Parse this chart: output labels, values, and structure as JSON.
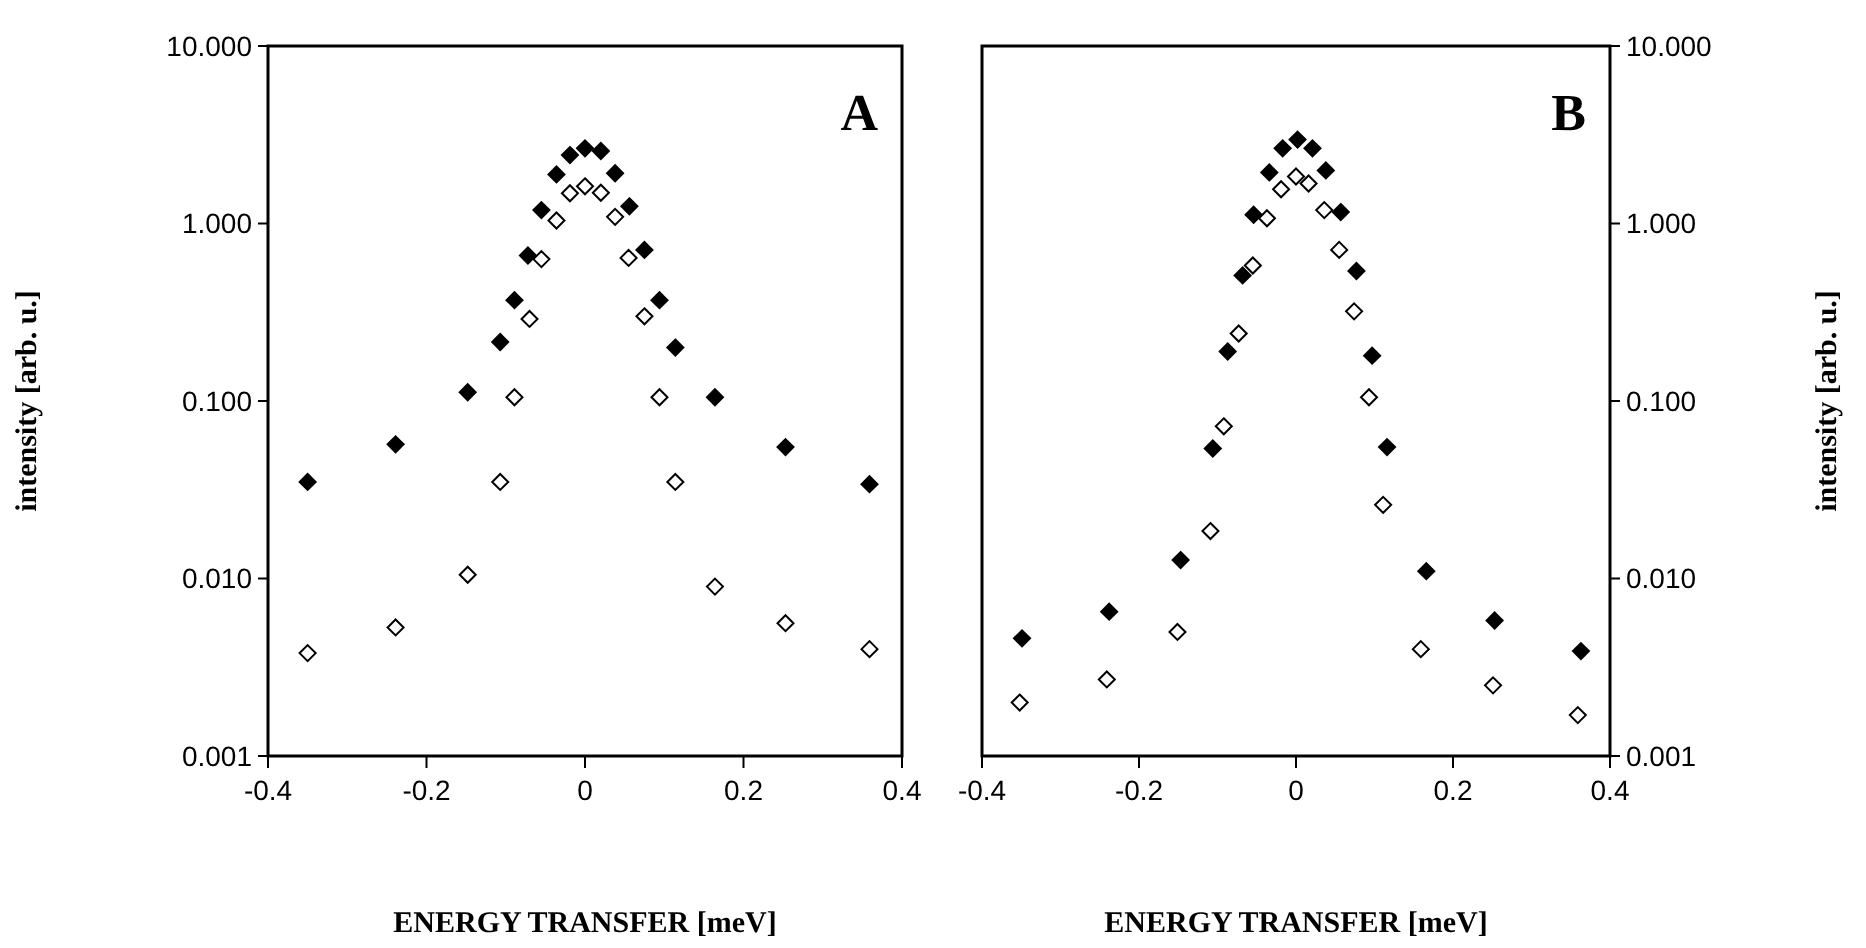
{
  "chart_data": [
    {
      "type": "scatter",
      "xlabel": "ENERGY TRANSFER [meV]",
      "ylabel": "intensity [arb. u.]",
      "annotations": [
        "A"
      ],
      "log": "y",
      "marker": "diamond",
      "grid": false,
      "xlim": [
        -0.4,
        0.4
      ],
      "xticks": [
        -0.4,
        -0.2,
        0,
        0.2,
        0.4
      ],
      "ylim": [
        0.001,
        10
      ],
      "yticks": [
        {
          "value": 0.001,
          "label": "0.001"
        },
        {
          "value": 0.01,
          "label": "0.010"
        },
        {
          "value": 0.1,
          "label": "0.100"
        },
        {
          "value": 1,
          "label": "1.000"
        },
        {
          "value": 10,
          "label": "10.000"
        }
      ],
      "series": [
        {
          "color": "#000000",
          "x": [
            -0.35,
            -0.239,
            -0.148,
            -0.107,
            -0.089,
            -0.072,
            -0.055,
            -0.036,
            -0.019,
            0,
            0.02,
            0.038,
            0.056,
            0.075,
            0.094,
            0.114,
            0.164,
            0.253,
            0.359
          ],
          "values": [
            0.035,
            0.057,
            0.112,
            0.215,
            0.37,
            0.66,
            1.19,
            1.89,
            2.43,
            2.65,
            2.56,
            1.92,
            1.25,
            0.71,
            0.37,
            0.2,
            0.105,
            0.055,
            0.034
          ]
        },
        {
          "color": "#ffffff",
          "x": [
            -0.35,
            -0.239,
            -0.148,
            -0.107,
            -0.089,
            -0.07,
            -0.055,
            -0.036,
            -0.019,
            0,
            0.02,
            0.038,
            0.055,
            0.075,
            0.094,
            0.114,
            0.164,
            0.253,
            0.359
          ],
          "values": [
            0.0038,
            0.0053,
            0.0105,
            0.035,
            0.105,
            0.29,
            0.63,
            1.04,
            1.48,
            1.62,
            1.49,
            1.09,
            0.64,
            0.3,
            0.105,
            0.035,
            0.009,
            0.0056,
            0.004
          ]
        }
      ]
    },
    {
      "type": "scatter",
      "xlabel": "ENERGY TRANSFER [meV]",
      "y2label": "intensity [arb. u.]",
      "annotations": [
        "B"
      ],
      "log": "y2",
      "marker": "diamond",
      "grid": false,
      "xlim": [
        -0.4,
        0.4
      ],
      "xticks": [
        -0.4,
        -0.2,
        0,
        0.2,
        0.4
      ],
      "y2lim": [
        0.001,
        10
      ],
      "y2ticks": [
        {
          "value": 0.001,
          "label": "0.001"
        },
        {
          "value": 0.01,
          "label": "0.010"
        },
        {
          "value": 0.1,
          "label": "0.100"
        },
        {
          "value": 1,
          "label": "1.000"
        },
        {
          "value": 10,
          "label": "10.000"
        }
      ],
      "series": [
        {
          "color": "#000000",
          "axis": "y2",
          "x": [
            -0.349,
            -0.238,
            -0.147,
            -0.106,
            -0.087,
            -0.068,
            -0.054,
            -0.034,
            -0.017,
            0.002,
            0.021,
            0.038,
            0.057,
            0.077,
            0.097,
            0.116,
            0.166,
            0.253,
            0.363
          ],
          "values": [
            0.0046,
            0.0065,
            0.0127,
            0.054,
            0.19,
            0.51,
            1.12,
            1.94,
            2.65,
            2.97,
            2.65,
            1.99,
            1.16,
            0.54,
            0.18,
            0.055,
            0.011,
            0.0058,
            0.0039
          ]
        },
        {
          "color": "#ffffff",
          "axis": "y2",
          "x": [
            -0.352,
            -0.241,
            -0.151,
            -0.109,
            -0.092,
            -0.073,
            -0.055,
            -0.037,
            -0.019,
            0,
            0.016,
            0.036,
            0.055,
            0.074,
            0.093,
            0.111,
            0.159,
            0.251,
            0.359
          ],
          "values": [
            0.002,
            0.0027,
            0.005,
            0.0185,
            0.072,
            0.24,
            0.58,
            1.07,
            1.56,
            1.84,
            1.68,
            1.19,
            0.71,
            0.32,
            0.105,
            0.026,
            0.004,
            0.0025,
            0.0017
          ]
        }
      ]
    }
  ]
}
